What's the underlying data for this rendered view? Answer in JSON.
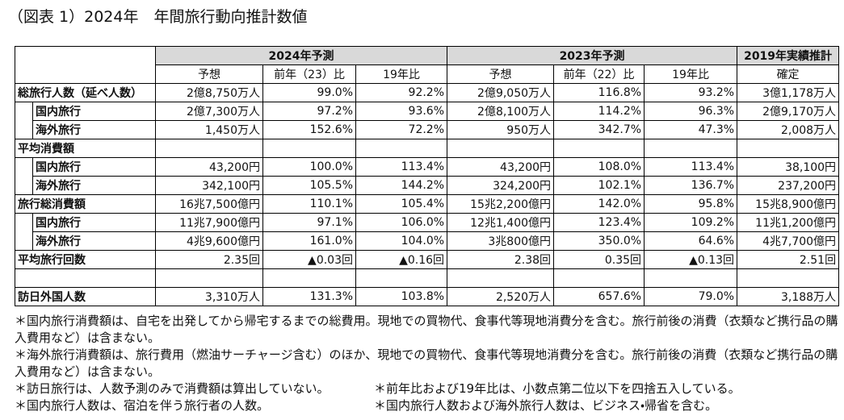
{
  "title": "（図表 1）2024年　年間旅行動向推計数値",
  "table": {
    "groups": [
      "2024年予測",
      "2023年予測",
      "2019年実績推計"
    ],
    "subheaders": [
      "予想",
      "前年（23）比",
      "19年比",
      "予想",
      "前年（22）比",
      "19年比",
      "確定"
    ],
    "rows": [
      {
        "label": "総旅行人数（延べ人数）",
        "values": [
          "2億8,750万人",
          "99.0%",
          "92.2%",
          "2億9,050万人",
          "116.8%",
          "93.2%",
          "3億1,178万人"
        ]
      },
      {
        "label": "国内旅行",
        "values": [
          "2億7,300万人",
          "97.2%",
          "93.6%",
          "2億8,100万人",
          "114.2%",
          "96.3%",
          "2億9,170万人"
        ]
      },
      {
        "label": "海外旅行",
        "values": [
          "1,450万人",
          "152.6%",
          "72.2%",
          "950万人",
          "342.7%",
          "47.3%",
          "2,008万人"
        ]
      },
      {
        "label": "平均消費額"
      },
      {
        "label": "国内旅行",
        "values": [
          "43,200円",
          "100.0%",
          "113.4%",
          "43,200円",
          "108.0%",
          "113.4%",
          "38,100円"
        ]
      },
      {
        "label": "海外旅行",
        "values": [
          "342,100円",
          "105.5%",
          "144.2%",
          "324,200円",
          "102.1%",
          "136.7%",
          "237,200円"
        ]
      },
      {
        "label": "旅行総消費額",
        "values": [
          "16兆7,500億円",
          "110.1%",
          "105.4%",
          "15兆2,200億円",
          "142.0%",
          "95.8%",
          "15兆8,900億円"
        ]
      },
      {
        "label": "国内旅行",
        "values": [
          "11兆7,900億円",
          "97.1%",
          "106.0%",
          "12兆1,400億円",
          "123.4%",
          "109.2%",
          "11兆1,200億円"
        ]
      },
      {
        "label": "海外旅行",
        "values": [
          "4兆9,600億円",
          "161.0%",
          "104.0%",
          "3兆800億円",
          "350.0%",
          "64.6%",
          "4兆7,700億円"
        ]
      },
      {
        "label": "平均旅行回数",
        "values": [
          "2.35回",
          "▲0.03回",
          "▲0.16回",
          "2.38回",
          "0.35回",
          "▲0.13回",
          "2.51回"
        ]
      },
      {
        "label": "訪日外国人数",
        "values": [
          "3,310万人",
          "131.3%",
          "103.8%",
          "2,520万人",
          "657.6%",
          "79.0%",
          "3,188万人"
        ]
      }
    ]
  },
  "notes": [
    "＊国内旅行消費額は、自宅を出発してから帰宅するまでの総費用。現地での買物代、食事代等現地消費分を含む。旅行前後の消費（衣類など携行品の購入費用など）は含まない。",
    "＊海外旅行消費額は、旅行費用（燃油サーチャージ含む）のほか、現地での買物代、食事代等現地消費分を含む。旅行前後の消費（衣類など携行品の購入費用など）は含まない。",
    "＊訪日旅行は、人数予測のみで消費額は算出していない。",
    "＊前年比および19年比は、小数点第二位以下を四捨五入している。",
    "＊国内旅行人数は、宿泊を伴う旅行者の人数。",
    "＊国内旅行人数および海外旅行人数は、ビジネス・帰省を含む。"
  ]
}
